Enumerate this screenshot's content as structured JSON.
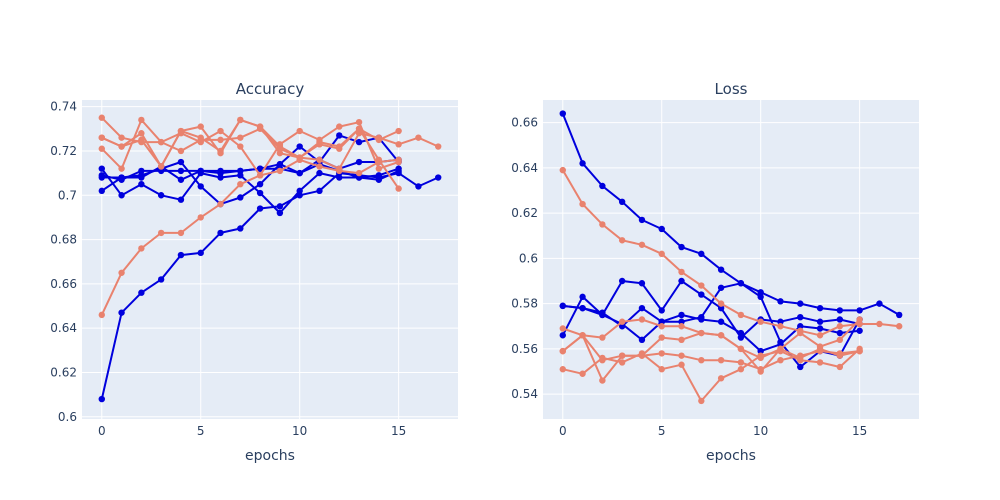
{
  "colors": {
    "blue": "#0000dd",
    "salmon": "#e9826e",
    "plot_bg": "#e5ecf6",
    "grid": "#ffffff",
    "text": "#2a3f5f"
  },
  "chart_data": [
    {
      "type": "line",
      "title": "Accuracy",
      "xlabel": "epochs",
      "ylabel": "",
      "xlim": [
        -1,
        18
      ],
      "ylim": [
        0.599,
        0.743
      ],
      "grid": true,
      "xticks": [
        0,
        5,
        10,
        15
      ],
      "xtick_labels": [
        "0",
        "5",
        "10",
        "15"
      ],
      "yticks": [
        0.6,
        0.62,
        0.64,
        0.66,
        0.68,
        0.7,
        0.72,
        0.74
      ],
      "ytick_labels": [
        "0.6",
        "0.62",
        "0.64",
        "0.66",
        "0.68",
        "0.7",
        "0.72",
        "0.74"
      ],
      "series": [
        {
          "color": "blue",
          "values": [
            0.608,
            0.647,
            0.656,
            0.662,
            0.673,
            0.674,
            0.683,
            0.685,
            0.694,
            0.695,
            0.7,
            0.702,
            0.71,
            0.709,
            0.708,
            0.71,
            0.704,
            0.708
          ]
        },
        {
          "color": "blue",
          "values": [
            0.702,
            0.708,
            0.709,
            0.712,
            0.715,
            0.704,
            0.696,
            0.699,
            0.705,
            0.714,
            0.722,
            0.715,
            0.727,
            0.724,
            0.726,
            0.715
          ]
        },
        {
          "color": "blue",
          "values": [
            0.709,
            0.707,
            0.711,
            0.711,
            0.711,
            0.711,
            0.71,
            0.711,
            0.712,
            0.712,
            0.71,
            0.716,
            0.712,
            0.715,
            0.715,
            0.716
          ]
        },
        {
          "color": "blue",
          "values": [
            0.712,
            0.7,
            0.705,
            0.7,
            0.698,
            0.71,
            0.708,
            0.709,
            0.701,
            0.692,
            0.702,
            0.71,
            0.708,
            0.708,
            0.707,
            0.711
          ]
        },
        {
          "color": "blue",
          "values": [
            0.708,
            0.708,
            0.708,
            0.713,
            0.707,
            0.711,
            0.711,
            0.711,
            0.712,
            0.714,
            0.71,
            0.714,
            0.711,
            0.708,
            0.709,
            0.712
          ]
        },
        {
          "color": "salmon",
          "values": [
            0.646,
            0.665,
            0.676,
            0.683,
            0.683,
            0.69,
            0.696,
            0.705,
            0.709,
            0.711,
            0.716,
            0.713,
            0.711,
            0.71,
            0.715,
            0.716
          ]
        },
        {
          "color": "salmon",
          "values": [
            0.735,
            0.726,
            0.724,
            0.724,
            0.72,
            0.725,
            0.725,
            0.726,
            0.73,
            0.721,
            0.717,
            0.724,
            0.722,
            0.73,
            0.716,
            0.703
          ]
        },
        {
          "color": "salmon",
          "values": [
            0.721,
            0.712,
            0.734,
            0.724,
            0.728,
            0.724,
            0.729,
            0.722,
            0.709,
            0.723,
            0.729,
            0.725,
            0.731,
            0.733,
            0.712,
            0.715
          ]
        },
        {
          "color": "salmon",
          "values": [
            0.726,
            0.722,
            0.725,
            0.713,
            0.729,
            0.731,
            0.719,
            0.734,
            0.731,
            0.719,
            0.717,
            0.716,
            0.712,
            0.728,
            0.726,
            0.723,
            0.726,
            0.722
          ]
        },
        {
          "color": "salmon",
          "values": [
            0.726,
            0.722,
            0.728,
            0.713,
            0.729,
            0.726,
            0.72,
            0.734,
            0.731,
            0.722,
            0.717,
            0.723,
            0.721,
            0.73,
            0.725,
            0.729
          ]
        }
      ]
    },
    {
      "type": "line",
      "title": "Loss",
      "xlabel": "epochs",
      "ylabel": "",
      "xlim": [
        -1,
        18
      ],
      "ylim": [
        0.529,
        0.67
      ],
      "grid": true,
      "xticks": [
        0,
        5,
        10,
        15
      ],
      "xtick_labels": [
        "0",
        "5",
        "10",
        "15"
      ],
      "yticks": [
        0.54,
        0.56,
        0.58,
        0.6,
        0.62,
        0.64,
        0.66
      ],
      "ytick_labels": [
        "0.54",
        "0.56",
        "0.58",
        "0.6",
        "0.62",
        "0.64",
        "0.66"
      ],
      "series": [
        {
          "color": "blue",
          "values": [
            0.664,
            0.642,
            0.632,
            0.625,
            0.617,
            0.613,
            0.605,
            0.602,
            0.595,
            0.589,
            0.585,
            0.581,
            0.58,
            0.578,
            0.577,
            0.577,
            0.58,
            0.575
          ]
        },
        {
          "color": "blue",
          "values": [
            0.566,
            0.583,
            0.575,
            0.59,
            0.589,
            0.577,
            0.59,
            0.584,
            0.578,
            0.565,
            0.573,
            0.572,
            0.574,
            0.572,
            0.573,
            0.571
          ]
        },
        {
          "color": "blue",
          "values": [
            0.579,
            0.578,
            0.576,
            0.57,
            0.578,
            0.572,
            0.572,
            0.574,
            0.587,
            0.589,
            0.583,
            0.563,
            0.552,
            0.559,
            0.557,
            0.573
          ]
        },
        {
          "color": "blue",
          "values": [
            0.579,
            0.578,
            0.575,
            0.571,
            0.564,
            0.572,
            0.575,
            0.573,
            0.572,
            0.567,
            0.559,
            0.562,
            0.57,
            0.569,
            0.567,
            0.568
          ]
        },
        {
          "color": "salmon",
          "values": [
            0.639,
            0.624,
            0.615,
            0.608,
            0.606,
            0.602,
            0.594,
            0.588,
            0.58,
            0.575,
            0.572,
            0.57,
            0.568,
            0.566,
            0.57,
            0.571,
            0.571,
            0.57
          ]
        },
        {
          "color": "salmon",
          "values": [
            0.569,
            0.566,
            0.565,
            0.572,
            0.573,
            0.57,
            0.57,
            0.567,
            0.566,
            0.56,
            0.556,
            0.56,
            0.567,
            0.561,
            0.564,
            0.573
          ]
        },
        {
          "color": "salmon",
          "values": [
            0.559,
            0.566,
            0.555,
            0.557,
            0.557,
            0.558,
            0.557,
            0.555,
            0.555,
            0.554,
            0.551,
            0.555,
            0.557,
            0.559,
            0.558,
            0.559
          ]
        },
        {
          "color": "salmon",
          "values": [
            0.551,
            0.549,
            0.556,
            0.554,
            0.558,
            0.551,
            0.553,
            0.537,
            0.547,
            0.551,
            0.557,
            0.559,
            0.555,
            0.554,
            0.552,
            0.56
          ]
        },
        {
          "color": "salmon",
          "values": [
            0.559,
            0.566,
            0.546,
            0.557,
            0.557,
            0.565,
            0.564,
            0.567,
            0.566,
            0.56,
            0.55,
            0.56,
            0.556,
            0.56,
            0.557,
            0.559
          ]
        }
      ]
    }
  ]
}
